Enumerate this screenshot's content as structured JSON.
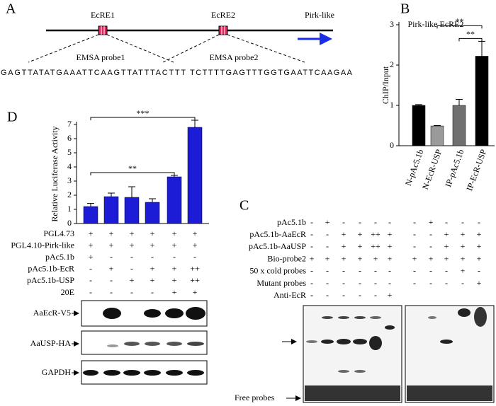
{
  "panel_labels": [
    "A",
    "B",
    "C",
    "D"
  ],
  "diagram": {
    "elements": [
      "EcRE1",
      "EcRE2"
    ],
    "gene": "Pirk-like",
    "probes": [
      "EMSA probe1",
      "EMSA probe2"
    ],
    "sequences": [
      "GAGTTATATGAAATTCAAGTTATTTACTTT",
      "TCTTTTGAGTTTGGTGAATTCAAGAA"
    ]
  },
  "chart_data": [
    {
      "type": "bar",
      "title": "Pirk-like EcRE2",
      "y_label": "ChIP/Input",
      "categories": [
        "N-pAc5.1b",
        "N-EcR-USP",
        "IP-pAc5.1b",
        "IP-EcR-USP"
      ],
      "values": [
        1.0,
        0.49,
        1.0,
        2.22
      ],
      "errors": [
        0.02,
        0.01,
        0.15,
        0.37
      ],
      "colors": [
        "#000000",
        "#9a9a9a",
        "#707070",
        "#000000"
      ],
      "ylim": [
        0,
        3
      ],
      "yticks": [
        0,
        1,
        2,
        3
      ],
      "significance": [
        {
          "between": [
            1,
            3
          ],
          "label": "**"
        },
        {
          "between": [
            2,
            3
          ],
          "label": "**"
        }
      ]
    },
    {
      "type": "bar",
      "y_label": "Relative Luciferase Activity",
      "categories": [
        null,
        null,
        null,
        null,
        null,
        null
      ],
      "values": [
        1.2,
        1.9,
        1.85,
        1.5,
        3.3,
        6.8
      ],
      "errors": [
        0.22,
        0.25,
        0.75,
        0.25,
        0.1,
        0.5
      ],
      "color": "#1c1cd6",
      "ylim": [
        0,
        7
      ],
      "yticks": [
        0,
        1,
        2,
        3,
        4,
        5,
        6,
        7
      ],
      "significance": [
        {
          "between": [
            0,
            5
          ],
          "label": "***"
        },
        {
          "between": [
            0,
            4
          ],
          "label": "**"
        }
      ]
    }
  ],
  "treatment_table": {
    "rows": [
      {
        "label": "PGL4.73",
        "marks": [
          "+",
          "+",
          "+",
          "+",
          "+",
          "+"
        ]
      },
      {
        "label": "PGL4.10-Pirk-like",
        "marks": [
          "+",
          "+",
          "+",
          "+",
          "+",
          "+"
        ]
      },
      {
        "label": "pAc5.1b",
        "marks": [
          "+",
          "-",
          "-",
          "-",
          "-",
          "-"
        ]
      },
      {
        "label": "pAc5.1b-EcR",
        "marks": [
          "-",
          "+",
          "-",
          "+",
          "+",
          "++"
        ]
      },
      {
        "label": "pAc5.1b-USP",
        "marks": [
          "-",
          "-",
          "+",
          "+",
          "+",
          "++"
        ]
      },
      {
        "label": "20E",
        "marks": [
          "-",
          "-",
          "-",
          "-",
          "+",
          "+"
        ]
      }
    ]
  },
  "blots": [
    "AaEcR-V5",
    "AaUSP-HA",
    "GAPDH"
  ],
  "emsa": {
    "rows": [
      {
        "label": "pAc5.1b",
        "left": [
          "-",
          "+",
          "-",
          "-",
          "-",
          "-"
        ],
        "right": [
          "-",
          "+",
          "-",
          "-",
          "-"
        ]
      },
      {
        "label": "pAc5.1b-AaEcR",
        "left": [
          "-",
          "-",
          "+",
          "+",
          "++",
          "+"
        ],
        "right": [
          "-",
          "-",
          "+",
          "+",
          "+"
        ]
      },
      {
        "label": "pAc5.1b-AaUSP",
        "left": [
          "-",
          "-",
          "+",
          "+",
          "++",
          "+"
        ],
        "right": [
          "-",
          "-",
          "+",
          "+",
          "+"
        ]
      },
      {
        "label": "Bio-probe2",
        "left": [
          "+",
          "+",
          "+",
          "+",
          "+",
          "+"
        ],
        "right": [
          "+",
          "+",
          "+",
          "+",
          "+"
        ]
      },
      {
        "label": "50 x cold probes",
        "left": [
          "-",
          "-",
          "-",
          "-",
          "-",
          "-"
        ],
        "right": [
          "-",
          "-",
          "-",
          "+",
          "-"
        ]
      },
      {
        "label": "Mutant probes",
        "left": [
          "-",
          "-",
          "-",
          "-",
          "-",
          "-"
        ],
        "right": [
          "-",
          "-",
          "-",
          "-",
          "+"
        ]
      },
      {
        "label": "Anti-EcR",
        "left": [
          "-",
          "-",
          "-",
          "-",
          "-",
          "+"
        ],
        "right": []
      }
    ],
    "free_probe_label": "Free probes"
  }
}
